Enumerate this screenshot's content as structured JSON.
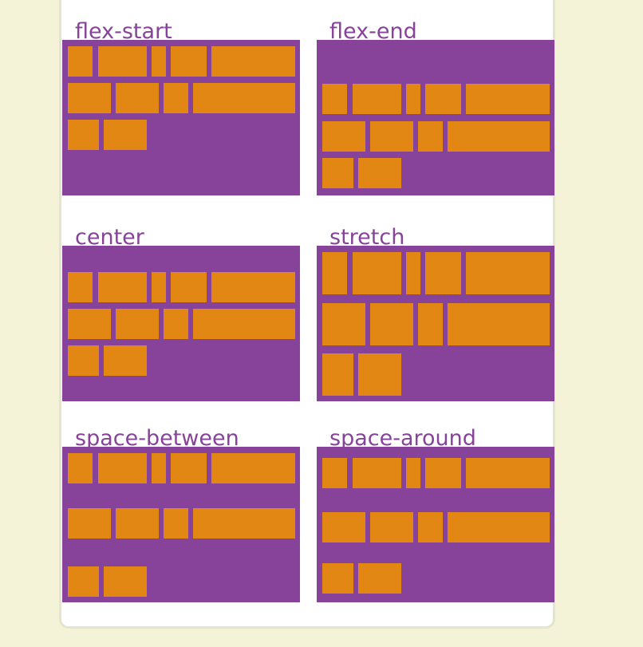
{
  "colors": {
    "page_background": "#f4f3d7",
    "card_background": "#ffffff",
    "container_purple": "#874399",
    "item_orange": "#e38714",
    "title_purple": "#874399"
  },
  "demos": [
    {
      "label": "flex-start",
      "align_content": "flex-start",
      "lines": 3
    },
    {
      "label": "flex-end",
      "align_content": "flex-end",
      "lines": 3
    },
    {
      "label": "center",
      "align_content": "center",
      "lines": 3
    },
    {
      "label": "stretch",
      "align_content": "stretch",
      "lines": 3
    },
    {
      "label": "space-between",
      "align_content": "space-between",
      "lines": 3
    },
    {
      "label": "space-around",
      "align_content": "space-around",
      "lines": 3
    }
  ]
}
